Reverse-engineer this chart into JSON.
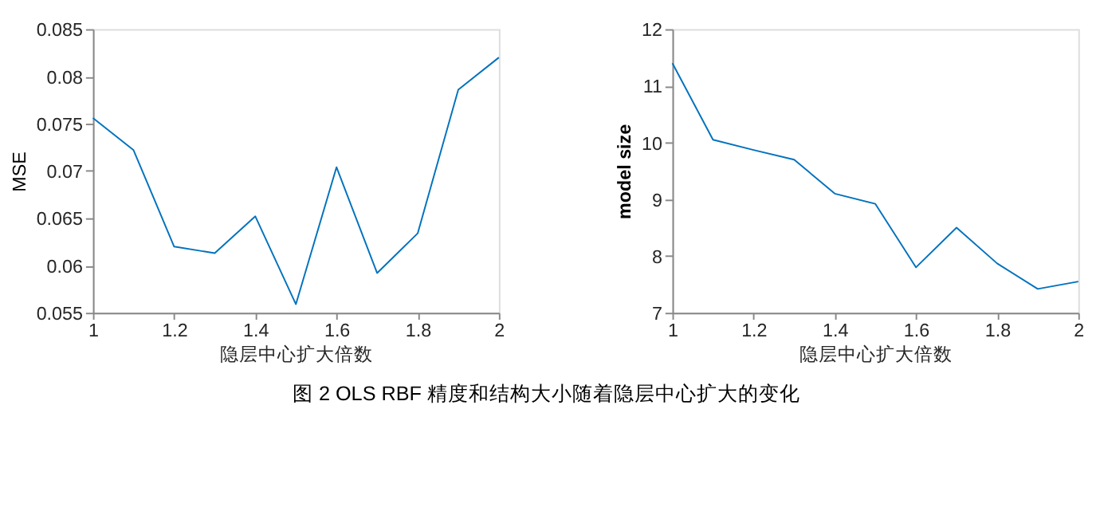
{
  "chart_data": [
    {
      "type": "line",
      "ylabel": "MSE",
      "xlabel": "隐层中心扩大倍数",
      "x": [
        1,
        1.1,
        1.2,
        1.3,
        1.4,
        1.5,
        1.6,
        1.7,
        1.8,
        1.9,
        2
      ],
      "series": [
        {
          "color": "#0072bd",
          "values": [
            0.0756,
            0.0722,
            0.062,
            0.0613,
            0.0652,
            0.0559,
            0.0704,
            0.0592,
            0.0634,
            0.0786,
            0.082
          ]
        }
      ],
      "xlim": [
        1,
        2
      ],
      "xticks": [
        1,
        1.2,
        1.4,
        1.6,
        1.8,
        2
      ],
      "ylim": [
        0.055,
        0.085
      ],
      "yticks": [
        0.055,
        0.06,
        0.065,
        0.07,
        0.075,
        0.08,
        0.085
      ],
      "grid": false,
      "annotations": [
        "图 2 OLS  RBF 精度和结构大小随着隐层中心扩大的变化"
      ]
    },
    {
      "type": "line",
      "ylabel": "model size",
      "xlabel": "隐层中心扩大倍数",
      "x": [
        1,
        1.1,
        1.2,
        1.3,
        1.4,
        1.5,
        1.6,
        1.7,
        1.8,
        1.9,
        2
      ],
      "series": [
        {
          "color": "#0072bd",
          "values": [
            11.4,
            10.05,
            9.87,
            9.7,
            9.1,
            8.92,
            7.8,
            8.5,
            7.87,
            7.42,
            7.55
          ]
        }
      ],
      "xlim": [
        1,
        2
      ],
      "xticks": [
        1,
        1.2,
        1.4,
        1.6,
        1.8,
        2
      ],
      "ylim": [
        7,
        12
      ],
      "yticks": [
        7,
        8,
        9,
        10,
        11,
        12
      ],
      "grid": false
    }
  ]
}
